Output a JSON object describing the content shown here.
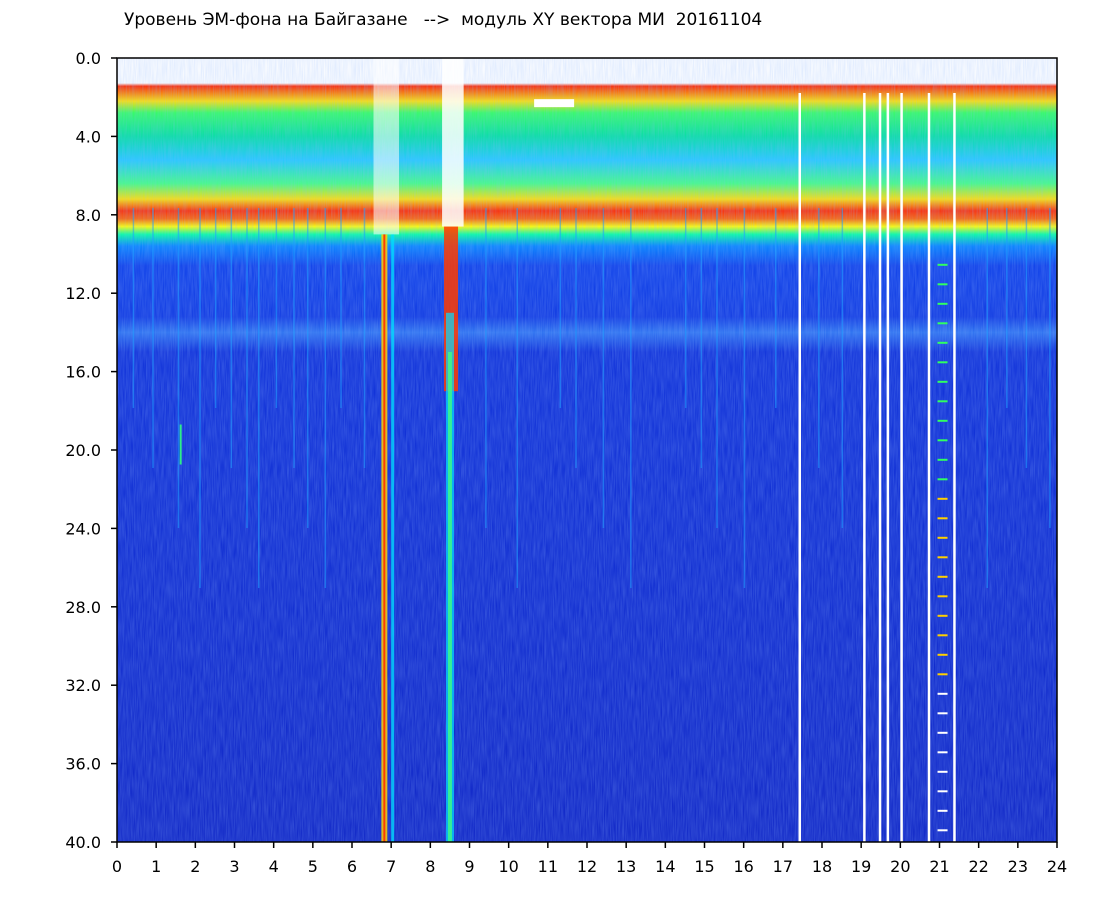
{
  "title": "Уровень ЭМ-фона на Байгазане   -->  модуль XY вектора МИ  20161104",
  "chart_data": {
    "type": "heatmap",
    "title": "Уровень ЭМ-фона на Байгазане   -->  модуль XY вектора МИ  20161104",
    "xlabel": "",
    "ylabel": "",
    "x_ticks": [
      "0",
      "1",
      "2",
      "3",
      "4",
      "5",
      "6",
      "7",
      "8",
      "9",
      "10",
      "11",
      "12",
      "13",
      "14",
      "15",
      "16",
      "17",
      "18",
      "19",
      "20",
      "21",
      "22",
      "23",
      "24"
    ],
    "y_ticks": [
      "0.0",
      "4.0",
      "8.0",
      "12.0",
      "16.0",
      "20.0",
      "24.0",
      "28.0",
      "32.0",
      "36.0",
      "40.0"
    ],
    "xlim": [
      0,
      24
    ],
    "ylim": [
      40,
      0
    ],
    "y_inverted": true,
    "colormap": [
      "#0a14c8",
      "#0050ff",
      "#00c8ff",
      "#00ff64",
      "#ffff00",
      "#ff2000"
    ],
    "grid": false,
    "band_profile": [
      {
        "y_from": 1.3,
        "y_to": 2.3,
        "level": "red"
      },
      {
        "y_from": 2.3,
        "y_to": 6.5,
        "level": "cyan-green"
      },
      {
        "y_from": 6.5,
        "y_to": 8.3,
        "level": "red-yellow"
      },
      {
        "y_from": 8.3,
        "y_to": 9.5,
        "level": "cyan"
      },
      {
        "y_from": 9.5,
        "y_to": 15.0,
        "level": "blue"
      },
      {
        "y_from": 15.0,
        "y_to": 40.0,
        "level": "dark-blue"
      }
    ],
    "gaps_hours": [
      17.4,
      19.05,
      19.45,
      19.65,
      20.0,
      20.7,
      21.35
    ]
  }
}
